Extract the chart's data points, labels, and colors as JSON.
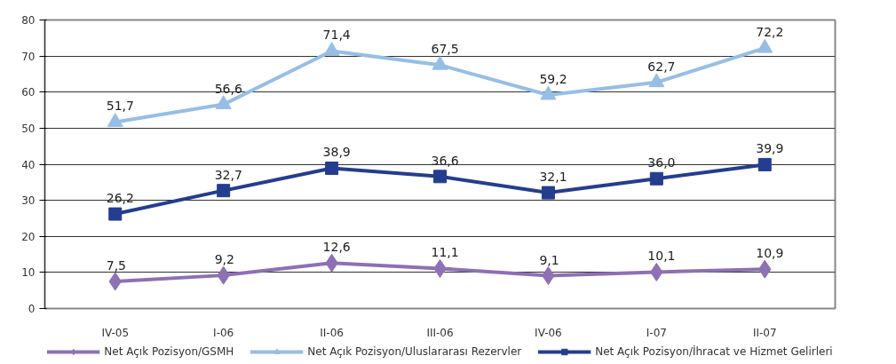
{
  "chart_data": {
    "type": "line",
    "categories": [
      "IV-05",
      "I-06",
      "II-06",
      "III-06",
      "IV-06",
      "I-07",
      "II-07"
    ],
    "ylim": [
      0,
      80
    ],
    "yticks": [
      0,
      10,
      20,
      30,
      40,
      50,
      60,
      70,
      80
    ],
    "grid": "y",
    "legend": "bottom",
    "line_style": "solid",
    "series": [
      {
        "name": "Net Açık Pozisyon/GSMH",
        "color": "#8e70b4",
        "marker": "diamond",
        "values": [
          7.5,
          9.2,
          12.6,
          11.1,
          9.1,
          10.1,
          10.9
        ],
        "value_labels": [
          "7,5",
          "9,2",
          "12,6",
          "11,1",
          "9,1",
          "10,1",
          "10,9"
        ]
      },
      {
        "name": "Net Açık Pozisyon/Uluslararası Rezervler",
        "color": "#96bee6",
        "marker": "triangle",
        "values": [
          51.7,
          56.6,
          71.4,
          67.5,
          59.2,
          62.7,
          72.2
        ],
        "value_labels": [
          "51,7",
          "56,6",
          "71,4",
          "67,5",
          "59,2",
          "62,7",
          "72,2"
        ]
      },
      {
        "name": "Net Açık Pozisyon/İhracat ve Hizmet Gelirleri",
        "color": "#243d8f",
        "marker": "square",
        "values": [
          26.2,
          32.7,
          38.9,
          36.6,
          32.1,
          36.0,
          39.9
        ],
        "value_labels": [
          "26,2",
          "32,7",
          "38,9",
          "36,6",
          "32,1",
          "36,0",
          "39,9"
        ]
      }
    ]
  }
}
